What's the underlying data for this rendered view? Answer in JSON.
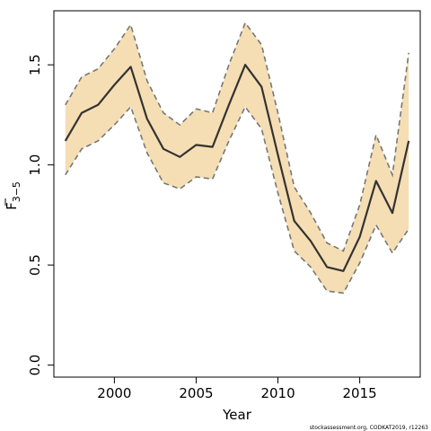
{
  "chart_data": {
    "type": "line",
    "xlabel": "Year",
    "ylabel": {
      "main": "F",
      "subscript": "3−5"
    },
    "x": [
      1997,
      1998,
      1999,
      2000,
      2001,
      2002,
      2003,
      2004,
      2005,
      2006,
      2007,
      2008,
      2009,
      2010,
      2011,
      2012,
      2013,
      2014,
      2015,
      2016,
      2017,
      2018
    ],
    "series": [
      {
        "role": "estimate",
        "values": [
          1.12,
          1.26,
          1.3,
          1.4,
          1.49,
          1.23,
          1.08,
          1.04,
          1.1,
          1.09,
          1.3,
          1.5,
          1.39,
          1.05,
          0.72,
          0.62,
          0.49,
          0.47,
          0.64,
          0.92,
          0.76,
          1.12
        ],
        "color": "#333333"
      },
      {
        "role": "upper bound",
        "values": [
          1.3,
          1.44,
          1.48,
          1.58,
          1.7,
          1.42,
          1.26,
          1.2,
          1.28,
          1.26,
          1.5,
          1.71,
          1.6,
          1.26,
          0.89,
          0.76,
          0.61,
          0.57,
          0.8,
          1.15,
          0.95,
          1.56
        ],
        "color": "#777777"
      },
      {
        "role": "lower bound",
        "values": [
          0.95,
          1.08,
          1.12,
          1.2,
          1.29,
          1.06,
          0.91,
          0.88,
          0.94,
          0.93,
          1.12,
          1.29,
          1.18,
          0.86,
          0.57,
          0.49,
          0.37,
          0.36,
          0.51,
          0.7,
          0.56,
          0.68
        ],
        "color": "#777777"
      }
    ],
    "band_color": "#f5deb3",
    "xlim": [
      1996.3,
      2018.7
    ],
    "ylim": [
      -0.06,
      1.77
    ],
    "xticks": [
      2000,
      2005,
      2010,
      2015
    ],
    "yticks": [
      0.0,
      0.5,
      1.0,
      1.5
    ],
    "ytick_labels": [
      "0.0",
      "0.5",
      "1.0",
      "1.5"
    ],
    "grid": false
  },
  "credit": "stockassessment.org, CODKAT2019, r12263"
}
